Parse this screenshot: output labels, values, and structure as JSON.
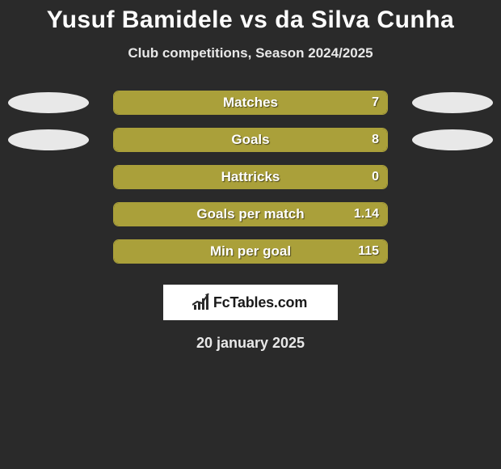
{
  "title": "Yusuf Bamidele vs da Silva Cunha",
  "subtitle": "Club competitions, Season 2024/2025",
  "date": "20 january 2025",
  "logo_text": "FcTables.com",
  "colors": {
    "background": "#2a2a2a",
    "bar_fill": "#aaa03a",
    "bar_border": "#aaa03a",
    "text": "#ffffff",
    "oval": "#e8e8e8"
  },
  "stats": [
    {
      "label": "Matches",
      "value": "7",
      "fill_pct": 100,
      "left_oval": true,
      "right_oval": true
    },
    {
      "label": "Goals",
      "value": "8",
      "fill_pct": 100,
      "left_oval": true,
      "right_oval": true
    },
    {
      "label": "Hattricks",
      "value": "0",
      "fill_pct": 100,
      "left_oval": false,
      "right_oval": false
    },
    {
      "label": "Goals per match",
      "value": "1.14",
      "fill_pct": 100,
      "left_oval": false,
      "right_oval": false
    },
    {
      "label": "Min per goal",
      "value": "115",
      "fill_pct": 100,
      "left_oval": false,
      "right_oval": false
    }
  ]
}
